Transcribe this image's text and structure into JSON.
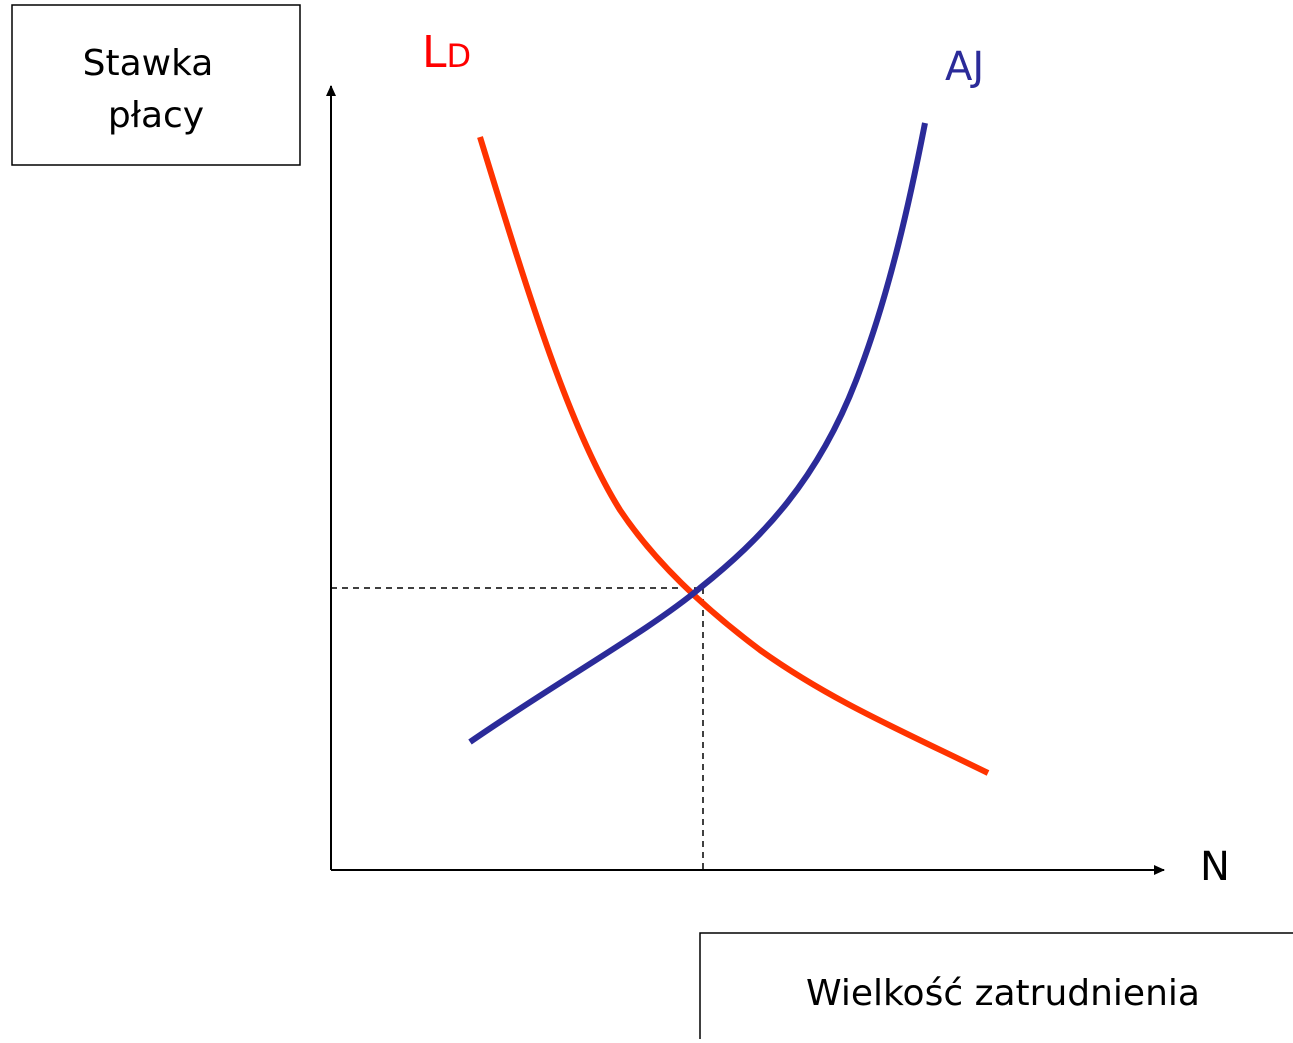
{
  "y_axis_box": {
    "lines": [
      "Stawka",
      "płacy"
    ]
  },
  "curves": [
    {
      "label_main": "L",
      "label_sub": "D"
    },
    {
      "label": "AJ"
    }
  ],
  "x_axis_label": "N",
  "x_axis_box": {
    "text": "Wielkość zatrudnienia"
  }
}
